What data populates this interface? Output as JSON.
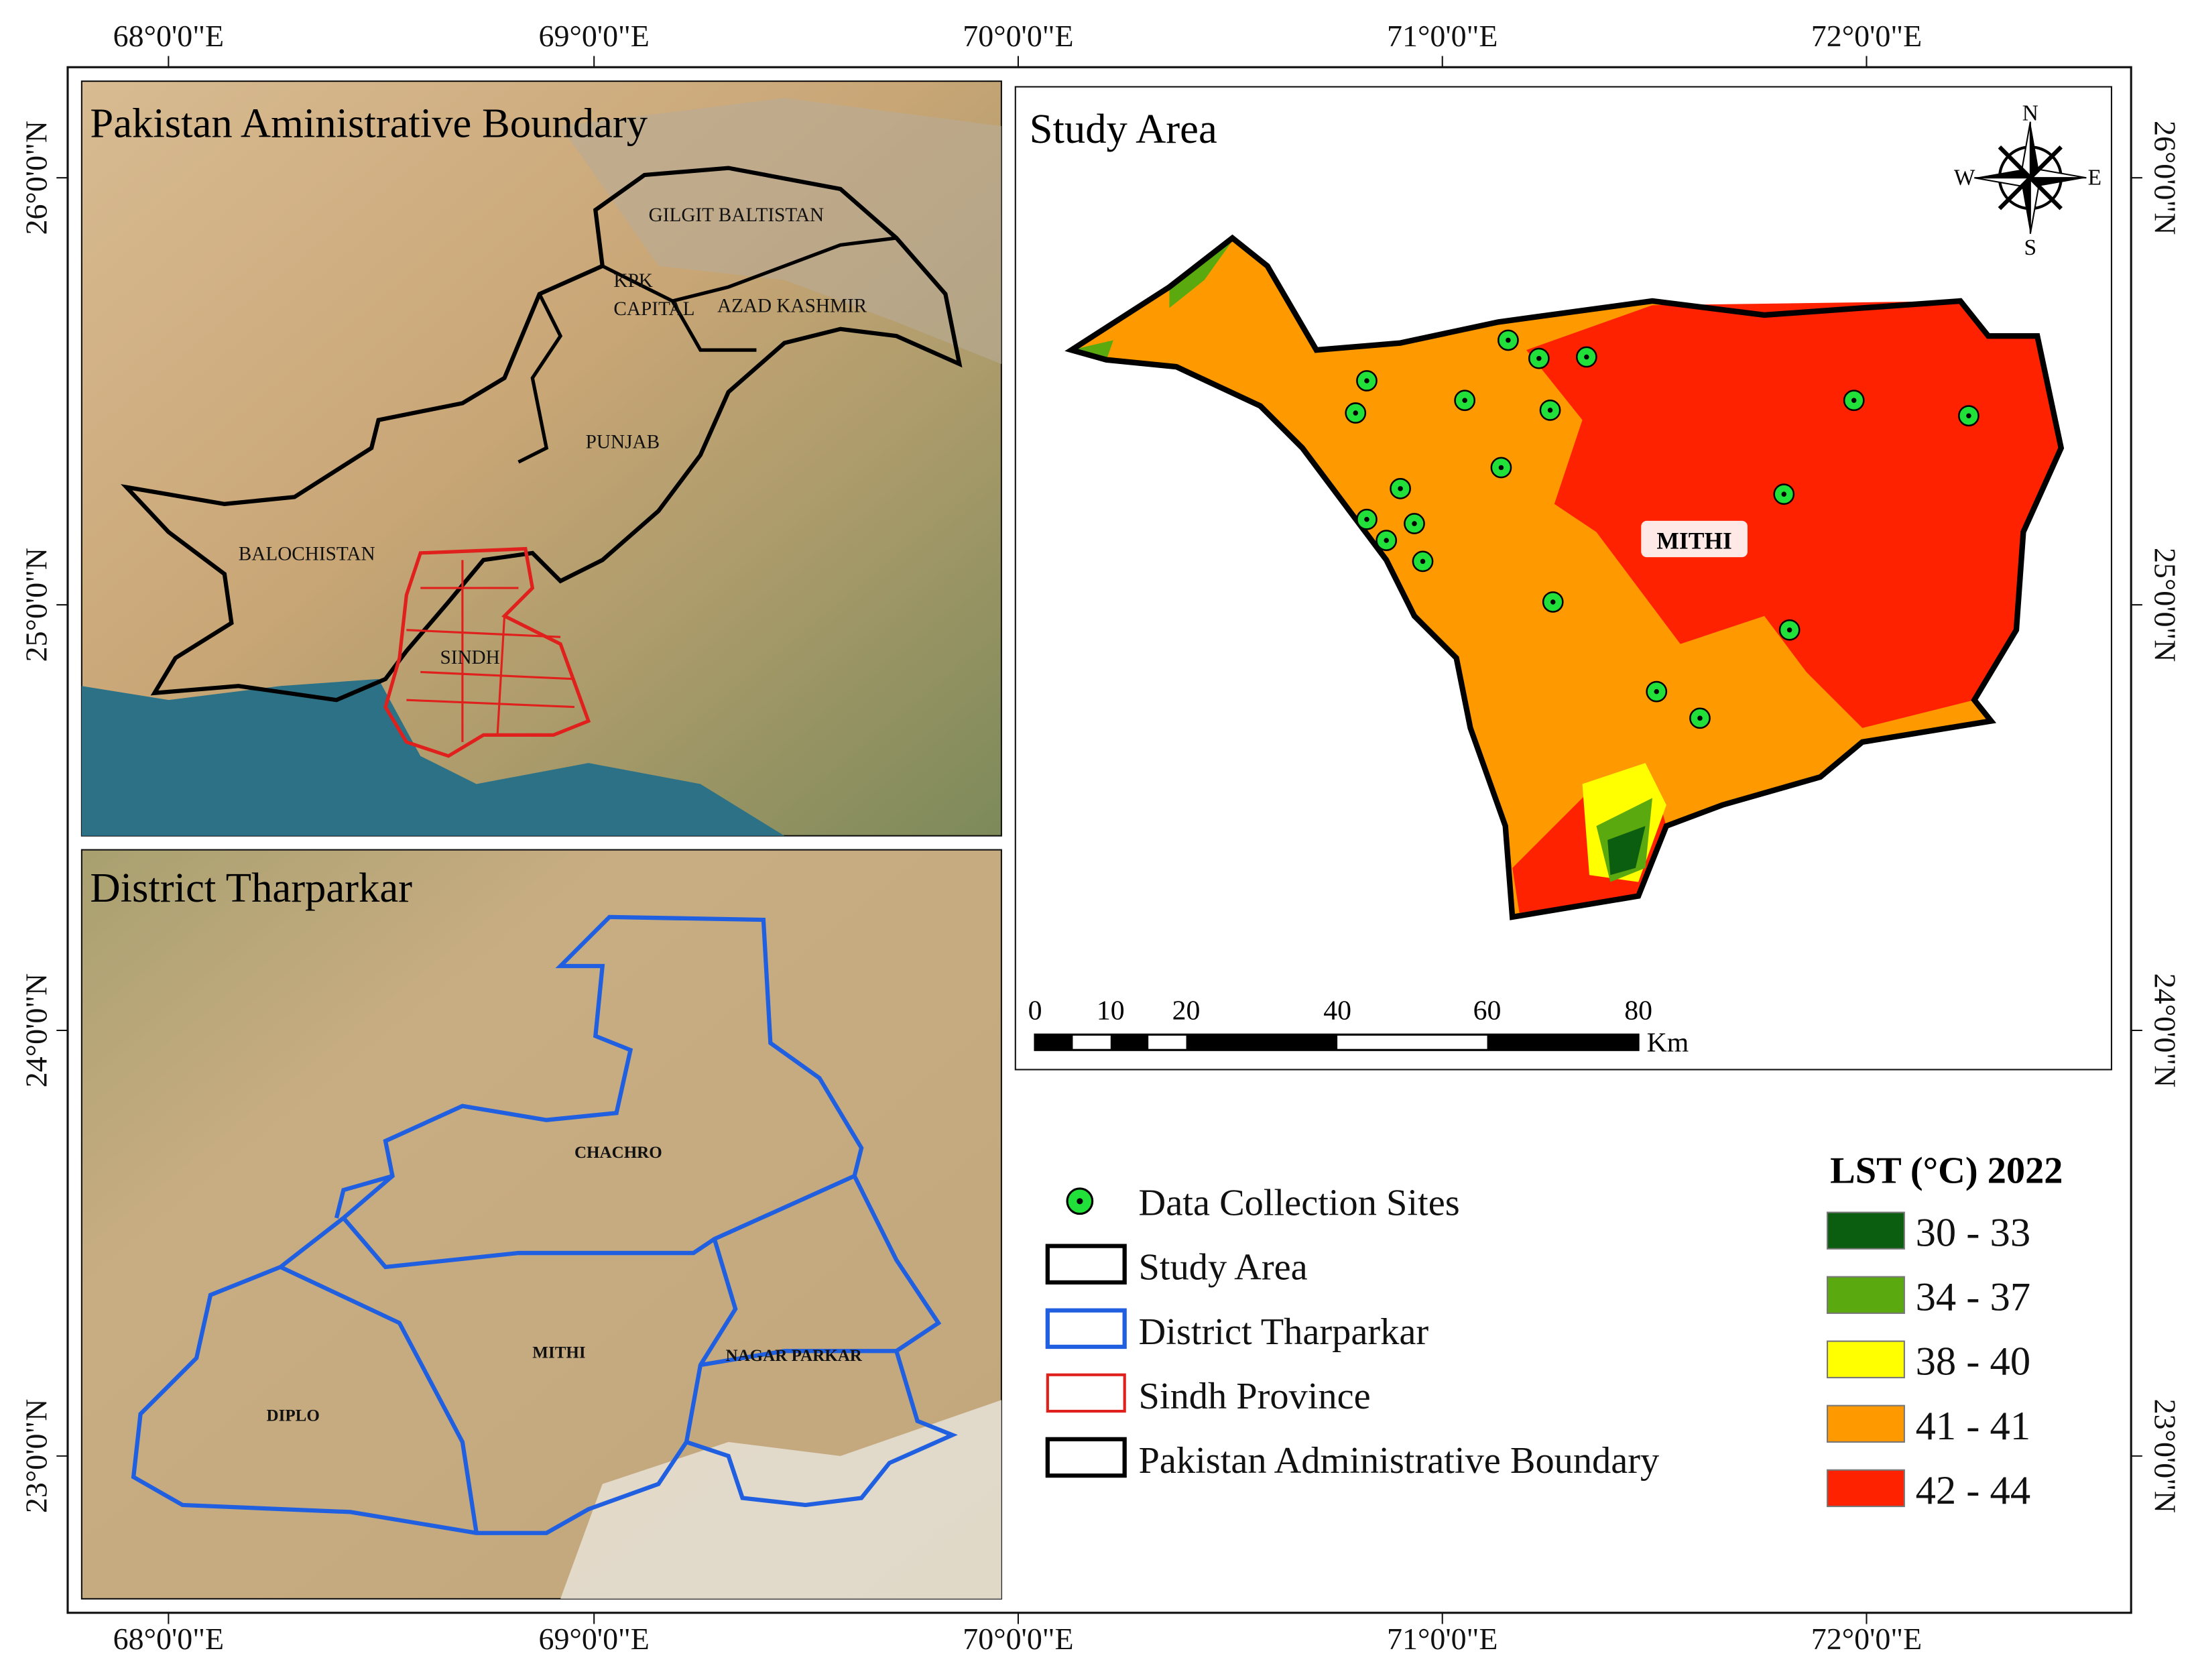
{
  "frame": {
    "top_labels": [
      "68°0'0\"E",
      "69°0'0\"E",
      "70°0'0\"E",
      "71°0'0\"E",
      "72°0'0\"E"
    ],
    "bottom_labels": [
      "68°0'0\"E",
      "69°0'0\"E",
      "70°0'0\"E",
      "71°0'0\"E",
      "72°0'0\"E"
    ],
    "left_labels": [
      "26°0'0\"N",
      "25°0'0\"N",
      "24°0'0\"N",
      "23°0'0\"N"
    ],
    "right_labels": [
      "26°0'0\"N",
      "25°0'0\"N",
      "24°0'0\"N",
      "23°0'0\"N"
    ]
  },
  "panels": {
    "pakistan": {
      "title": "Pakistan Aministrative Boundary",
      "labels": [
        "GILGIT BALTISTAN",
        "KPK",
        "CAPITAL",
        "AZAD KASHMIR",
        "PUNJAB",
        "BALOCHISTAN",
        "SINDH"
      ]
    },
    "tharparkar": {
      "title": "District Tharparkar",
      "labels": [
        "CHACHRO",
        "MITHI",
        "NAGAR PARKAR",
        "DIPLO"
      ]
    },
    "study_area": {
      "title": "Study Area",
      "label": "MITHI",
      "compass": [
        "N",
        "E",
        "S",
        "W"
      ],
      "scale_labels": [
        "0",
        "10",
        "20",
        "40",
        "60",
        "80"
      ],
      "scale_unit": "Km"
    }
  },
  "legend": {
    "items": [
      "Data Collection Sites",
      "Study Area",
      "District Tharparkar",
      "Sindh Province",
      "Pakistan Administrative Boundary"
    ]
  },
  "lst_legend": {
    "title": "LST (°C) 2022",
    "classes": [
      {
        "label": "30 - 33",
        "color": "#0b5e0f"
      },
      {
        "label": "34 - 37",
        "color": "#5aa90f"
      },
      {
        "label": "38 - 40",
        "color": "#ffff00"
      },
      {
        "label": "41 - 41",
        "color": "#ff9900"
      },
      {
        "label": "42 - 44",
        "color": "#ff2200"
      }
    ]
  }
}
